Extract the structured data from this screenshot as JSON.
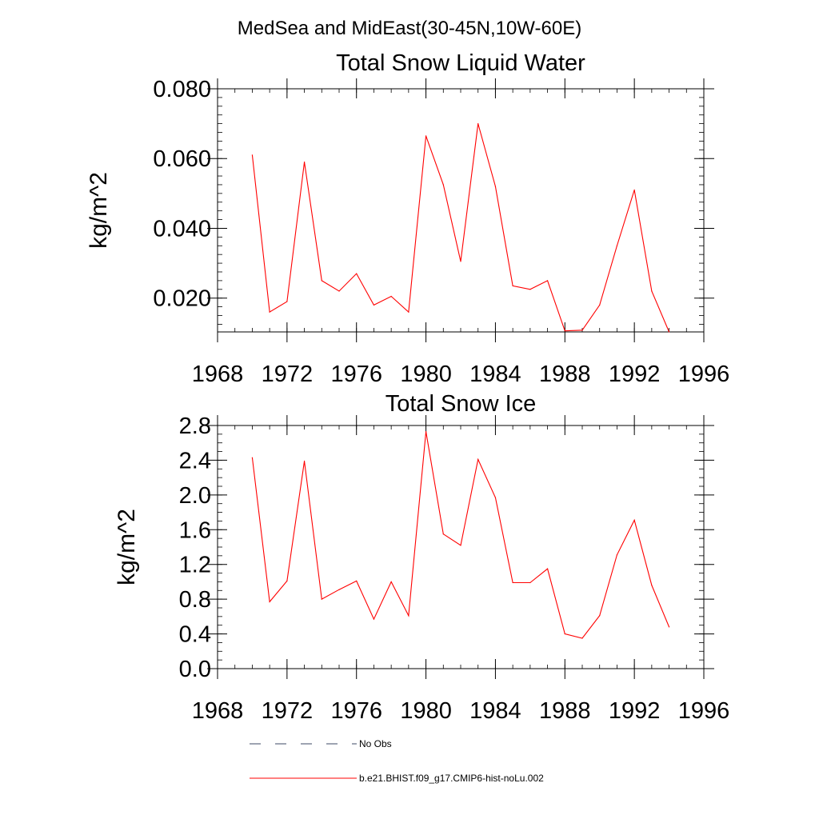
{
  "suptitle": "MedSea and MidEast(30-45N,10W-60E)",
  "legend": {
    "items": [
      {
        "label": "No Obs",
        "style": "dashed",
        "color": "#3c4a66"
      },
      {
        "label": "b.e21.BHIST.f09_g17.CMIP6-hist-noLu.002",
        "style": "solid",
        "color": "#ff0000"
      }
    ]
  },
  "chart_data": [
    {
      "type": "line",
      "title": "Total Snow Liquid Water",
      "xlabel": "",
      "ylabel": "kg/m^2",
      "xlim": [
        1968,
        1996
      ],
      "ylim": [
        0.0103,
        0.08
      ],
      "xticks": [
        "1968",
        "1972",
        "1976",
        "1980",
        "1984",
        "1988",
        "1992",
        "1996"
      ],
      "yticks": [
        "0.020",
        "0.040",
        "0.060",
        "0.080"
      ],
      "grid": false,
      "series": [
        {
          "name": "b.e21.BHIST.f09_g17.CMIP6-hist-noLu.002",
          "color": "#ff0000",
          "x": [
            1970,
            1971,
            1972,
            1973,
            1974,
            1975,
            1976,
            1977,
            1978,
            1979,
            1980,
            1981,
            1982,
            1983,
            1984,
            1985,
            1986,
            1987,
            1988,
            1989,
            1990,
            1991,
            1992,
            1993,
            1994
          ],
          "values": [
            0.061,
            0.016,
            0.019,
            0.059,
            0.025,
            0.022,
            0.027,
            0.018,
            0.0205,
            0.016,
            0.0665,
            0.0525,
            0.0305,
            0.07,
            0.052,
            0.0235,
            0.0225,
            0.025,
            0.0106,
            0.0108,
            0.018,
            0.035,
            0.051,
            0.022,
            0.0103
          ]
        }
      ]
    },
    {
      "type": "line",
      "title": "Total Snow Ice",
      "xlabel": "",
      "ylabel": "kg/m^2",
      "xlim": [
        1968,
        1996
      ],
      "ylim": [
        0.0,
        2.8
      ],
      "xticks": [
        "1968",
        "1972",
        "1976",
        "1980",
        "1984",
        "1988",
        "1992",
        "1996"
      ],
      "yticks": [
        "0.0",
        "0.4",
        "0.8",
        "1.2",
        "1.6",
        "2.0",
        "2.4",
        "2.8"
      ],
      "grid": false,
      "series": [
        {
          "name": "b.e21.BHIST.f09_g17.CMIP6-hist-noLu.002",
          "color": "#ff0000",
          "x": [
            1970,
            1971,
            1972,
            1973,
            1974,
            1975,
            1976,
            1977,
            1978,
            1979,
            1980,
            1981,
            1982,
            1983,
            1984,
            1985,
            1986,
            1987,
            1988,
            1989,
            1990,
            1991,
            1992,
            1993,
            1994
          ],
          "values": [
            2.43,
            0.77,
            1.01,
            2.39,
            0.8,
            0.91,
            1.01,
            0.57,
            1.0,
            0.61,
            2.73,
            1.55,
            1.42,
            2.41,
            1.97,
            0.99,
            0.99,
            1.15,
            0.4,
            0.35,
            0.61,
            1.31,
            1.71,
            0.96,
            0.48
          ]
        }
      ]
    }
  ]
}
